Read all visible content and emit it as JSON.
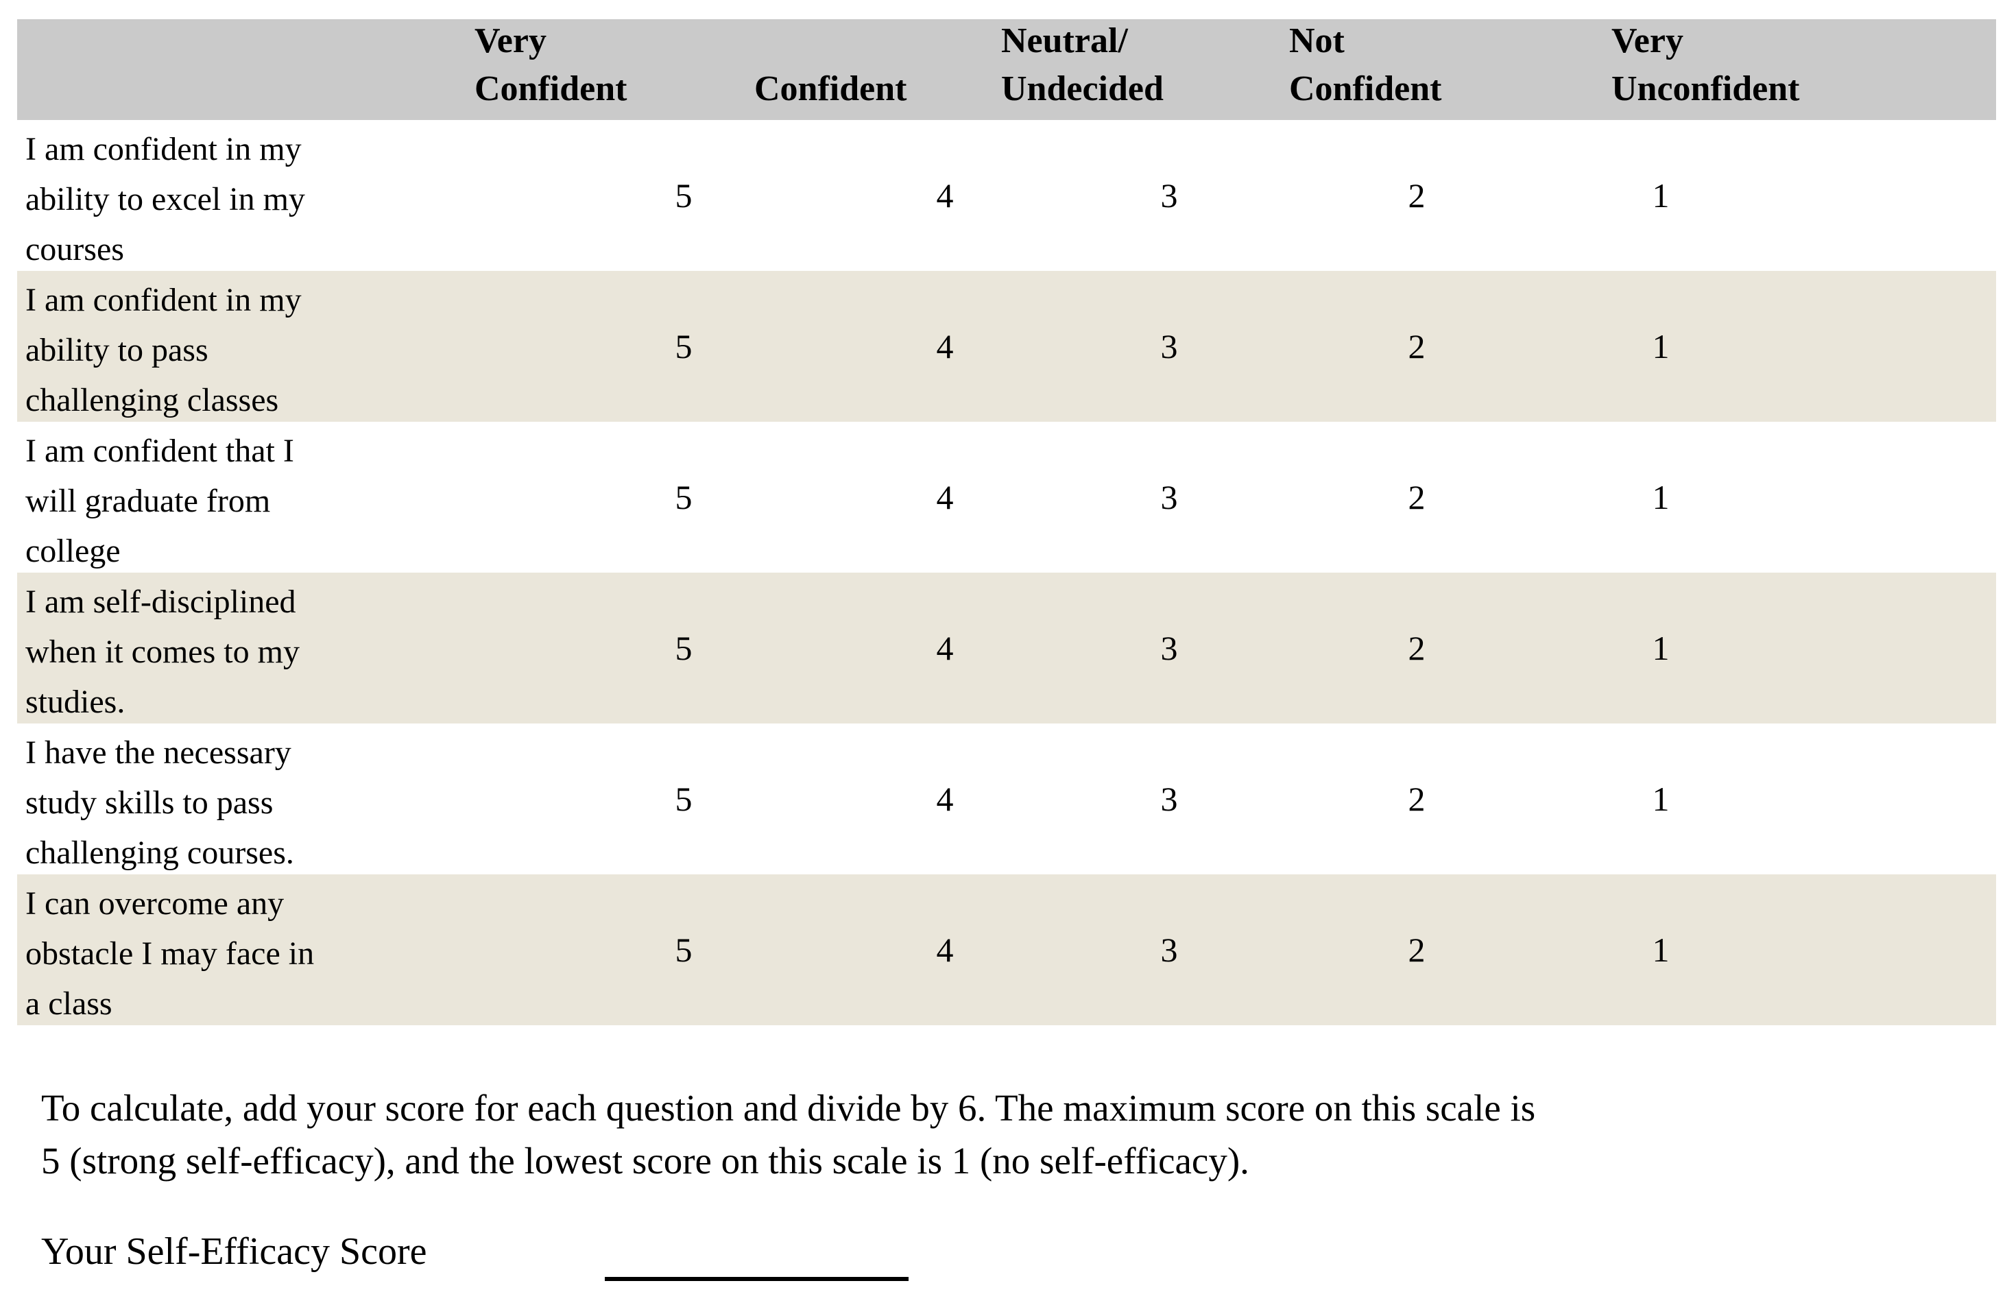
{
  "survey": {
    "header": {
      "columns": [
        "Very\nConfident",
        "Confident",
        "Neutral/\nUndecided",
        "Not\nConfident",
        "Very\nUnconfident"
      ]
    },
    "questions": [
      "I am confident in my\nability to excel in my\ncourses",
      "I am confident in my\nability to pass\nchallenging classes",
      "I am confident that I\nwill graduate from\ncollege",
      "I am self-disciplined\nwhen it comes to my\nstudies.",
      "I have the necessary\nstudy skills to pass\nchallenging courses.",
      "I can overcome any\nobstacle I may face in\na class"
    ],
    "scale": [
      "5",
      "4",
      "3",
      "2",
      "1"
    ],
    "instructions": "To calculate, add your score for each question and divide by 6. The maximum score on this scale is\n5 (strong self-efficacy), and the lowest score on this scale is 1 (no self-efficacy).",
    "score_label": "Your Self-Efficacy Score",
    "colors": {
      "header_bg": "#cacaca",
      "alt_row_bg": "#eae6da",
      "text": "#000000"
    }
  }
}
